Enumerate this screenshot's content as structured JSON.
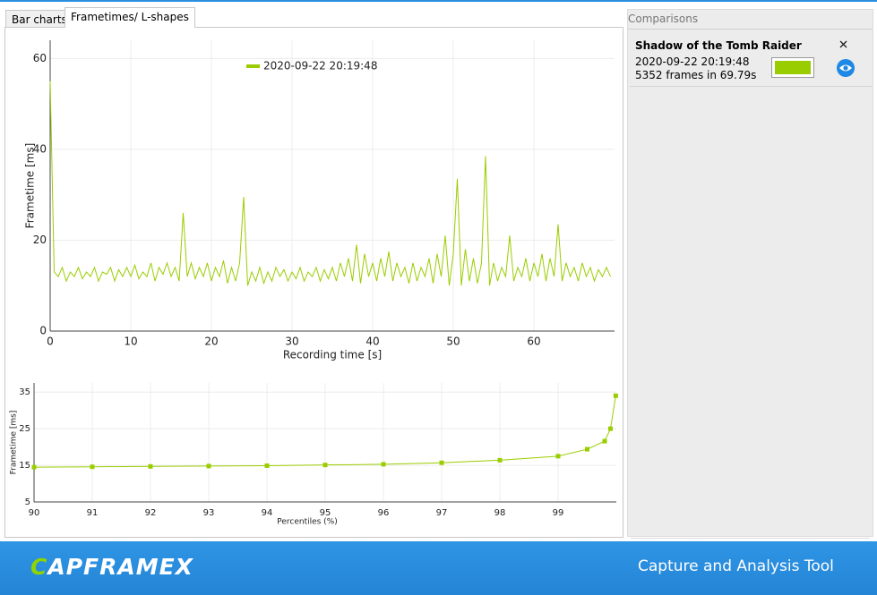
{
  "tabs": [
    "Bar charts",
    "Frametimes/ L-shapes"
  ],
  "comparisons": {
    "title": "Comparisons",
    "items": [
      {
        "game": "Shadow of the Tomb Raider",
        "date": "2020-09-22 20:19:48",
        "summary": "5352 frames in 69.79s",
        "color": "#9acd00"
      }
    ]
  },
  "footer": {
    "logo": "CAPFRAMEX",
    "tagline": "Capture and Analysis Tool"
  },
  "chart_data": [
    {
      "type": "line",
      "y_label": "Frametime [ms]",
      "x_label": "Recording time [s]",
      "xlim": [
        0,
        70
      ],
      "ylim": [
        0,
        64
      ],
      "xticks": [
        0,
        10,
        20,
        30,
        40,
        50,
        60
      ],
      "yticks": [
        0,
        20,
        40,
        60
      ],
      "grid": true,
      "legend": "top",
      "x": [
        0,
        0.5,
        1,
        1.5,
        2,
        2.5,
        3,
        3.5,
        4,
        4.5,
        5,
        5.5,
        6,
        6.5,
        7,
        7.5,
        8,
        8.5,
        9,
        9.5,
        10,
        10.5,
        11,
        11.5,
        12,
        12.5,
        13,
        13.5,
        14,
        14.5,
        15,
        15.5,
        16,
        16.5,
        17,
        17.5,
        18,
        18.5,
        19,
        19.5,
        20,
        20.5,
        21,
        21.5,
        22,
        22.5,
        23,
        23.5,
        24,
        24.5,
        25,
        25.5,
        26,
        26.5,
        27,
        27.5,
        28,
        28.5,
        29,
        29.5,
        30,
        30.5,
        31,
        31.5,
        32,
        32.5,
        33,
        33.5,
        34,
        34.5,
        35,
        35.5,
        36,
        36.5,
        37,
        37.5,
        38,
        38.5,
        39,
        39.5,
        40,
        40.5,
        41,
        41.5,
        42,
        42.5,
        43,
        43.5,
        44,
        44.5,
        45,
        45.5,
        46,
        46.5,
        47,
        47.5,
        48,
        48.5,
        49,
        49.5,
        50,
        50.5,
        51,
        51.5,
        52,
        52.5,
        53,
        53.5,
        54,
        54.5,
        55,
        55.5,
        56,
        56.5,
        57,
        57.5,
        58,
        58.5,
        59,
        59.5,
        60,
        60.5,
        61,
        61.5,
        62,
        62.5,
        63,
        63.5,
        64,
        64.5,
        65,
        65.5,
        66,
        66.5,
        67,
        67.5,
        68,
        68.5,
        69,
        69.5
      ],
      "series": [
        {
          "name": "2020-09-22 20:19:48",
          "color": "#9acd00",
          "values": [
            55,
            13,
            12,
            14,
            11,
            13,
            12,
            14,
            11.5,
            13,
            12,
            14,
            11,
            13,
            12.5,
            14,
            11,
            13.5,
            12,
            14,
            12,
            14.5,
            11.5,
            13,
            12,
            15,
            11,
            14,
            12.5,
            15,
            12,
            14,
            11,
            26,
            12,
            15,
            11.5,
            14,
            12,
            15,
            11,
            14,
            12,
            15.5,
            10.5,
            14,
            11,
            15,
            29.5,
            10,
            13,
            11,
            14,
            10.5,
            13,
            11,
            14,
            12,
            13.5,
            11,
            13,
            11.5,
            14,
            11,
            13,
            12,
            14,
            11,
            13.5,
            11.5,
            14,
            11,
            15,
            12,
            16,
            11,
            19,
            10.5,
            17,
            12,
            15,
            11,
            16,
            12,
            17.5,
            11,
            15,
            12,
            14,
            10.5,
            15,
            11,
            14,
            12,
            16,
            10.5,
            17,
            12,
            21,
            10,
            17,
            33.5,
            10,
            18,
            11,
            16,
            10.5,
            15,
            38.5,
            10,
            15,
            11,
            14,
            12,
            21,
            11,
            14,
            12,
            16,
            11,
            15,
            12,
            17,
            11,
            16,
            12,
            23.5,
            11,
            15,
            12,
            14,
            11,
            15,
            12,
            14,
            11,
            13.5,
            12,
            14,
            12
          ]
        }
      ]
    },
    {
      "type": "line",
      "markers": true,
      "y_label": "Frametime [ms]",
      "x_label": "Percentiles (%)",
      "xlim": [
        90,
        100
      ],
      "ylim": [
        5,
        37.5
      ],
      "xticks": [
        90,
        91,
        92,
        93,
        94,
        95,
        96,
        97,
        98,
        99
      ],
      "yticks": [
        5,
        15,
        25,
        35
      ],
      "grid": true,
      "x": [
        90,
        91,
        92,
        93,
        94,
        95,
        96,
        97,
        98,
        99,
        99.5,
        99.8,
        99.9,
        99.99
      ],
      "values": [
        14.5,
        14.6,
        14.7,
        14.8,
        14.9,
        15.1,
        15.3,
        15.7,
        16.4,
        17.5,
        19.4,
        21.6,
        25,
        34
      ],
      "color": "#9acd00"
    }
  ]
}
